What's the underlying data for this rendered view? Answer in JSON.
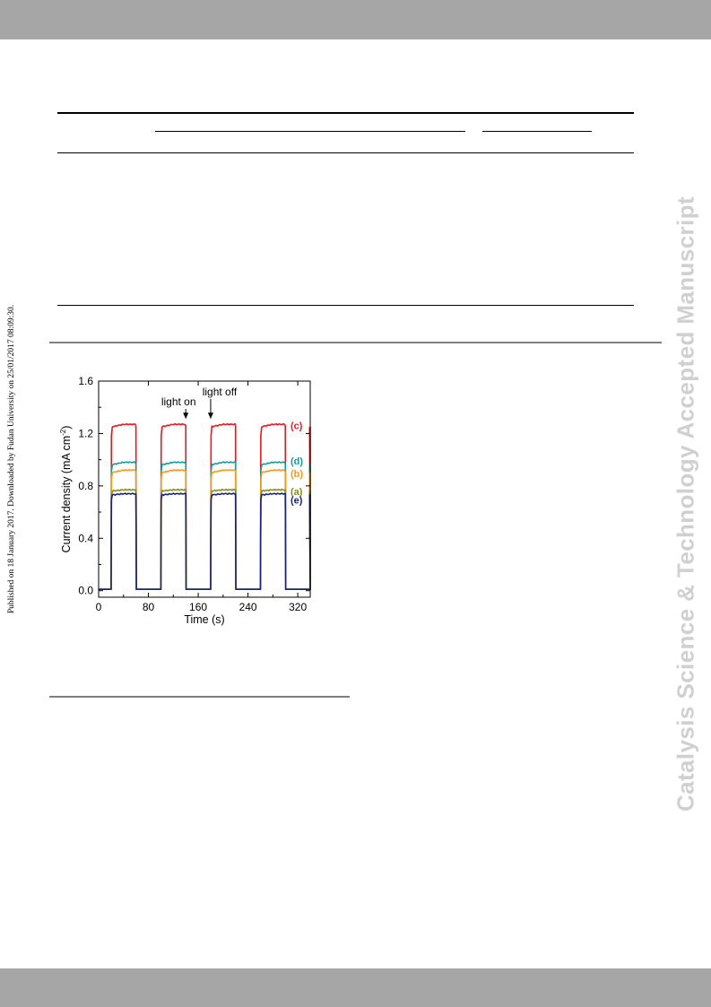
{
  "side_note": "Published on 18 January 2017. Downloaded by Fudan University on 25/01/2017 08:09:30.",
  "watermark": "Catalysis Science & Technology Accepted Manuscript",
  "chart_data": {
    "type": "line",
    "xlabel": "Time (s)",
    "ylabel": "Current density (mA cm",
    "ylabel_sup": "-2",
    "ylabel_close": ")",
    "xlim": [
      0,
      340
    ],
    "ylim": [
      -0.05,
      1.6
    ],
    "x_ticks": [
      0,
      80,
      160,
      240,
      320
    ],
    "y_ticks": [
      0.0,
      0.4,
      0.8,
      1.2,
      1.6
    ],
    "y_tick_labels": [
      "0.0",
      "0.4",
      "0.8",
      "1.2",
      "1.6"
    ],
    "light_on_times": [
      20,
      100,
      180,
      260,
      340
    ],
    "light_off_times": [
      60,
      140,
      220,
      300
    ],
    "dark_current": 0.01,
    "annotations": [
      {
        "text": "light on",
        "x": 140
      },
      {
        "text": "light off",
        "x": 180
      }
    ],
    "series": [
      {
        "name": "(c)",
        "on_value": 1.26,
        "color": "#e41a1c"
      },
      {
        "name": "(d)",
        "on_value": 0.97,
        "color": "#1a9a9a"
      },
      {
        "name": "(b)",
        "on_value": 0.91,
        "color": "#f39a1e"
      },
      {
        "name": "(a)",
        "on_value": 0.77,
        "color": "#8a8a1a"
      },
      {
        "name": "(e)",
        "on_value": 0.74,
        "color": "#1a237e"
      }
    ]
  }
}
